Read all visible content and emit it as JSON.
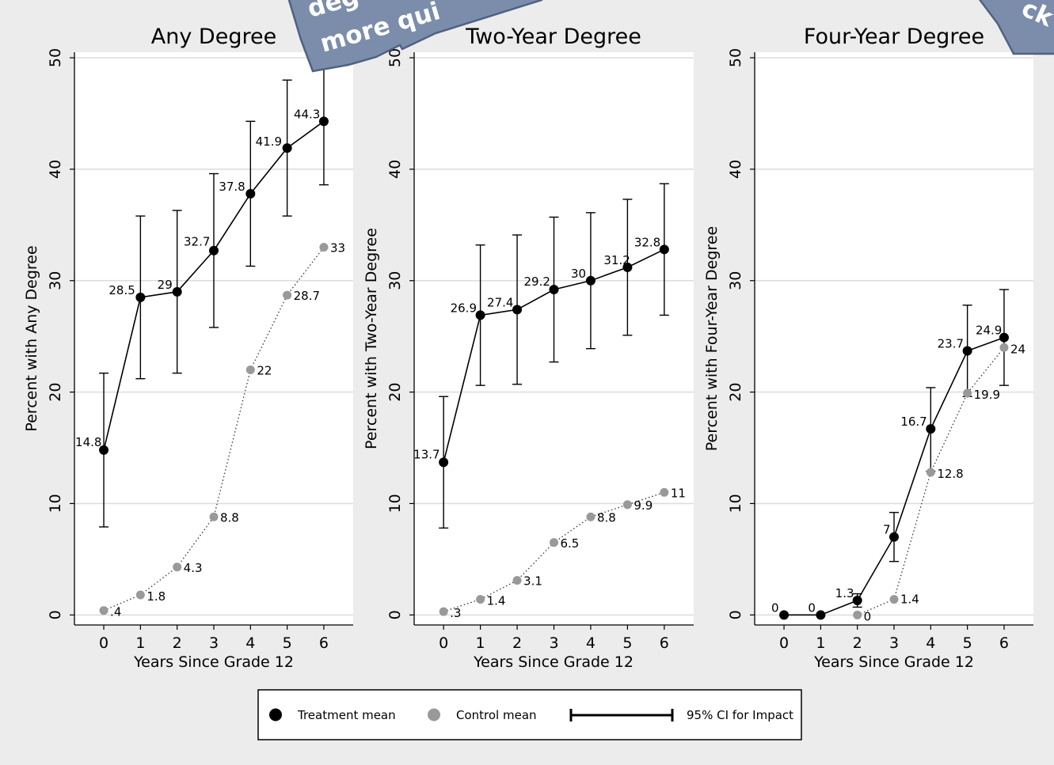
{
  "chart_data": [
    {
      "type": "line",
      "title": "Any Degree",
      "xlabel": "Years Since Grade 12",
      "ylabel": "Percent with Any Degree",
      "x": [
        0,
        1,
        2,
        3,
        4,
        5,
        6
      ],
      "xlim": [
        -0.8,
        6.8
      ],
      "ylim": [
        -0.9,
        50.5
      ],
      "yticks": [
        0,
        10,
        20,
        30,
        40,
        50
      ],
      "grid": true,
      "series": [
        {
          "name": "Treatment mean",
          "values": [
            14.8,
            28.5,
            29,
            32.7,
            37.8,
            41.9,
            44.3
          ],
          "labels": [
            "14.8",
            "28.5",
            "29",
            "32.7",
            "37.8",
            "41.9",
            "44.3"
          ],
          "ci_low": [
            7.9,
            21.2,
            21.7,
            25.8,
            31.3,
            35.8,
            38.6
          ],
          "ci_high": [
            21.7,
            35.8,
            36.3,
            39.6,
            44.3,
            48.0,
            50.0
          ]
        },
        {
          "name": "Control mean",
          "values": [
            0.4,
            1.8,
            4.3,
            8.8,
            22,
            28.7,
            33
          ],
          "labels": [
            ".4",
            "1.8",
            "4.3",
            "8.8",
            "22",
            "28.7",
            "33"
          ]
        }
      ]
    },
    {
      "type": "line",
      "title": "Two-Year Degree",
      "xlabel": "Years Since Grade 12",
      "ylabel": "Percent with Two-Year Degree",
      "x": [
        0,
        1,
        2,
        3,
        4,
        5,
        6
      ],
      "xlim": [
        -0.8,
        6.8
      ],
      "ylim": [
        -0.9,
        50.5
      ],
      "yticks": [
        0,
        10,
        20,
        30,
        40,
        50
      ],
      "grid": true,
      "series": [
        {
          "name": "Treatment mean",
          "values": [
            13.7,
            26.9,
            27.4,
            29.2,
            30,
            31.2,
            32.8
          ],
          "labels": [
            "13.7",
            "26.9",
            "27.4",
            "29.2",
            "30",
            "31.2",
            "32.8"
          ],
          "ci_low": [
            7.8,
            20.6,
            20.7,
            22.7,
            23.9,
            25.1,
            26.9
          ],
          "ci_high": [
            19.6,
            33.2,
            34.1,
            35.7,
            36.1,
            37.3,
            38.7
          ]
        },
        {
          "name": "Control mean",
          "values": [
            0.3,
            1.4,
            3.1,
            6.5,
            8.8,
            9.9,
            11
          ],
          "labels": [
            ".3",
            "1.4",
            "3.1",
            "6.5",
            "8.8",
            "9.9",
            "11"
          ]
        }
      ]
    },
    {
      "type": "line",
      "title": "Four-Year Degree",
      "xlabel": "Years Since Grade 12",
      "ylabel": "Percent with Four-Year Degree",
      "x": [
        0,
        1,
        2,
        3,
        4,
        5,
        6
      ],
      "xlim": [
        -0.8,
        6.8
      ],
      "ylim": [
        -0.9,
        50.5
      ],
      "yticks": [
        0,
        10,
        20,
        30,
        40,
        50
      ],
      "grid": true,
      "series": [
        {
          "name": "Treatment mean",
          "values": [
            0,
            0,
            1.3,
            7,
            16.7,
            23.7,
            24.9
          ],
          "labels": [
            "0",
            "0",
            "1.3",
            "7",
            "16.7",
            "23.7",
            "24.9"
          ],
          "ci_low": [
            0,
            0,
            0.7,
            4.8,
            12.9,
            19.6,
            20.6
          ],
          "ci_high": [
            0,
            0,
            1.9,
            9.2,
            20.4,
            27.8,
            29.2
          ]
        },
        {
          "name": "Control mean",
          "values": [
            null,
            null,
            0,
            1.4,
            12.8,
            19.9,
            24
          ],
          "labels": [
            "",
            "",
            "0",
            "1.4",
            "12.8",
            "19.9",
            "24"
          ]
        }
      ]
    }
  ],
  "legend": {
    "position": "bottom-center",
    "items": [
      "Treatment mean",
      "Control mean",
      "95% CI for Impact"
    ]
  },
  "colors": {
    "treatment": "#000000",
    "control": "#999999",
    "gridline": "#dcdcdc",
    "panel": "#ffffff",
    "figure_bg": "#ececec",
    "callout": "#7b8dab",
    "callout_border": "#4e6283"
  },
  "callouts": [
    {
      "lines": [
        "deg",
        "more qui"
      ]
    },
    {
      "lines": [
        "ck"
      ]
    }
  ]
}
